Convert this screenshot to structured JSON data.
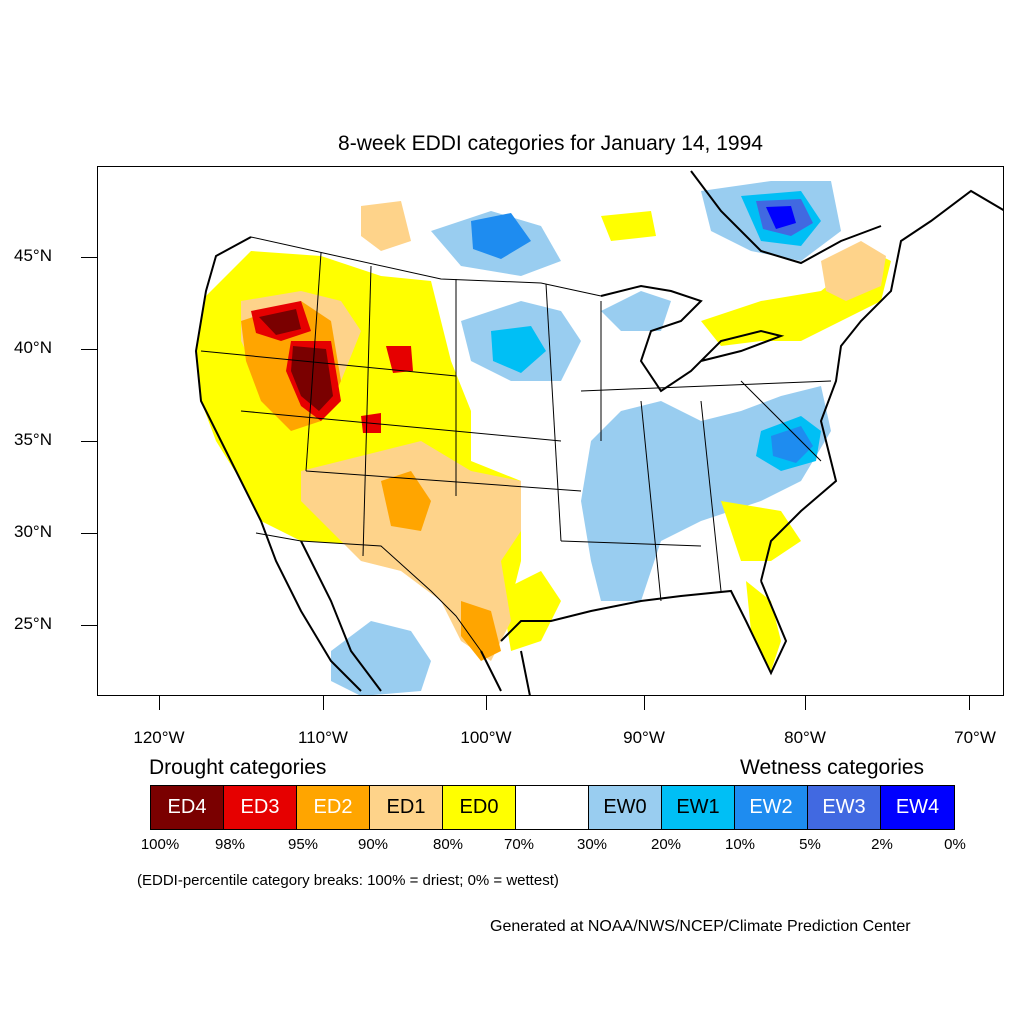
{
  "title": "8-week EDDI categories for January 14, 1994",
  "axes": {
    "latitude_labels": [
      "45°N",
      "40°N",
      "35°N",
      "30°N",
      "25°N"
    ],
    "longitude_labels": [
      "120°W",
      "110°W",
      "100°W",
      "90°W",
      "80°W",
      "70°W"
    ]
  },
  "legend": {
    "drought_title": "Drought categories",
    "wetness_title": "Wetness categories",
    "categories": [
      {
        "label": "ED4",
        "color": "#7a0000",
        "text_color": "#ffffff"
      },
      {
        "label": "ED3",
        "color": "#e60000",
        "text_color": "#ffffff"
      },
      {
        "label": "ED2",
        "color": "#ffa500",
        "text_color": "#ffffff"
      },
      {
        "label": "ED1",
        "color": "#fed38a",
        "text_color": "#000000"
      },
      {
        "label": "ED0",
        "color": "#ffff00",
        "text_color": "#000000"
      },
      {
        "label": "",
        "color": "#ffffff",
        "text_color": "#000000"
      },
      {
        "label": "EW0",
        "color": "#99cdf0",
        "text_color": "#000000"
      },
      {
        "label": "EW1",
        "color": "#00bff5",
        "text_color": "#000000"
      },
      {
        "label": "EW2",
        "color": "#1e8cf0",
        "text_color": "#ffffff"
      },
      {
        "label": "EW3",
        "color": "#4169e1",
        "text_color": "#ffffff"
      },
      {
        "label": "EW4",
        "color": "#0000ff",
        "text_color": "#ffffff"
      }
    ],
    "percent_breaks": [
      "100%",
      "98%",
      "95%",
      "90%",
      "80%",
      "70%",
      "30%",
      "20%",
      "10%",
      "5%",
      "2%",
      "0%"
    ]
  },
  "note": "(EDDI-percentile category breaks: 100% = driest; 0% = wettest)",
  "credit": "Generated at NOAA/NWS/NCEP/Climate Prediction Center"
}
